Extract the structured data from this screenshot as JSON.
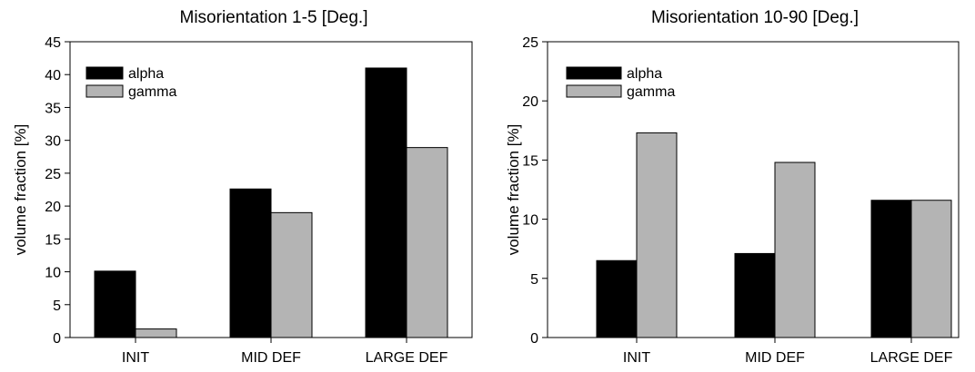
{
  "colors": {
    "alpha": "#000000",
    "gamma": "#b4b4b4"
  },
  "chart_data": [
    {
      "type": "bar",
      "title": "Misorientation 1-5 [Deg.]",
      "xlabel": "",
      "ylabel": "volume fraction [%]",
      "categories": [
        "INIT",
        "MID DEF",
        "LARGE DEF"
      ],
      "yticks": [
        "0",
        "5",
        "10",
        "15",
        "20",
        "25",
        "30",
        "35",
        "40",
        "45"
      ],
      "ylim": [
        0,
        45
      ],
      "series": [
        {
          "name": "alpha",
          "values": [
            10.1,
            22.6,
            41.0
          ]
        },
        {
          "name": "gamma",
          "values": [
            1.3,
            19.0,
            28.9
          ]
        }
      ],
      "legend": "top-left",
      "grid": false
    },
    {
      "type": "bar",
      "title": "Misorientation 10-90 [Deg.]",
      "xlabel": "",
      "ylabel": "volume fraction [%]",
      "categories": [
        "INIT",
        "MID DEF",
        "LARGE DEF"
      ],
      "yticks": [
        "0",
        "5",
        "10",
        "15",
        "20",
        "25"
      ],
      "ylim": [
        0,
        25
      ],
      "series": [
        {
          "name": "alpha",
          "values": [
            6.5,
            7.1,
            11.6
          ]
        },
        {
          "name": "gamma",
          "values": [
            17.3,
            14.8,
            11.6
          ]
        }
      ],
      "legend": "top-left",
      "grid": false
    }
  ]
}
